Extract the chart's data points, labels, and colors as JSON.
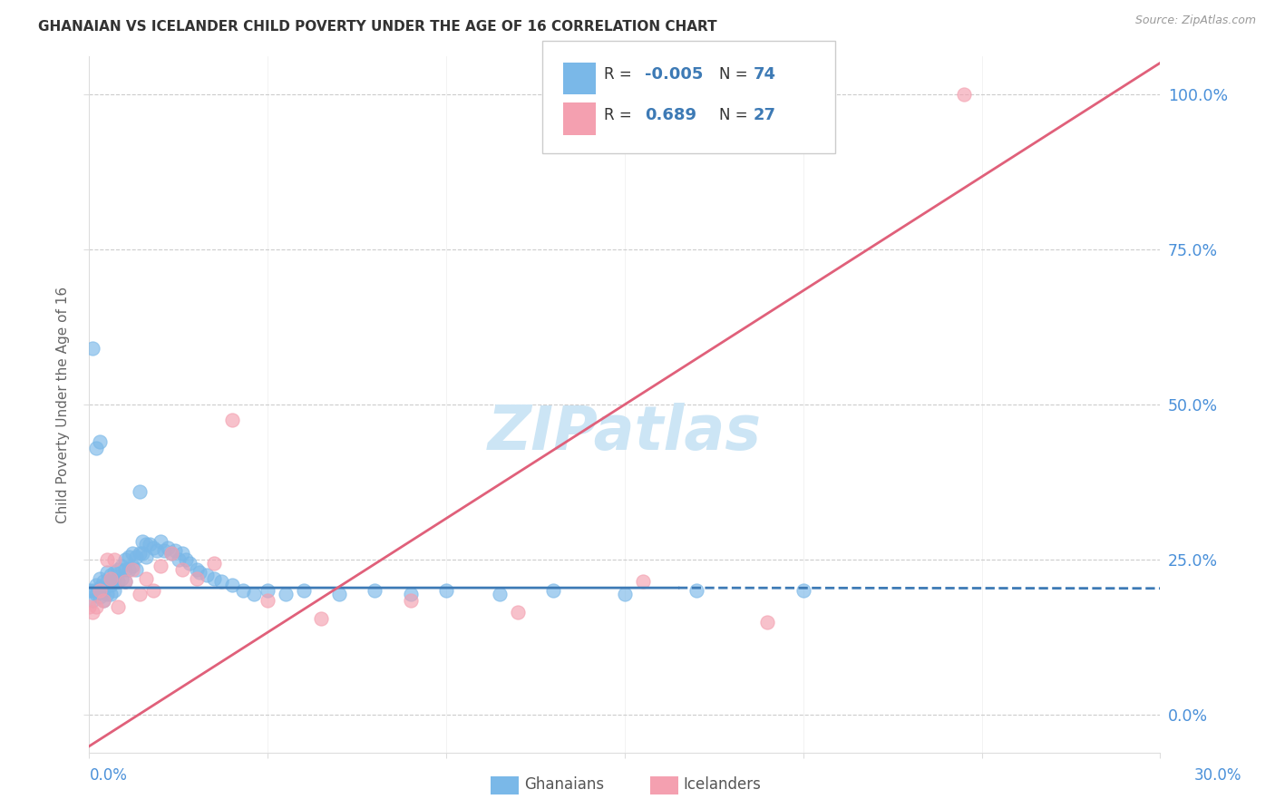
{
  "title": "GHANAIAN VS ICELANDER CHILD POVERTY UNDER THE AGE OF 16 CORRELATION CHART",
  "source": "Source: ZipAtlas.com",
  "ylabel": "Child Poverty Under the Age of 16",
  "ghanaian_color": "#7ab8e8",
  "icelander_color": "#f4a0b0",
  "ghanaian_line_color": "#3d7ab5",
  "icelander_line_color": "#e0607a",
  "watermark": "ZIPatlas",
  "xmin": 0.0,
  "xmax": 0.3,
  "ymin": -0.06,
  "ymax": 1.06,
  "ytick_vals": [
    0.0,
    0.25,
    0.5,
    0.75,
    1.0
  ],
  "ytick_labels": [
    "0.0%",
    "25.0%",
    "50.0%",
    "75.0%",
    "100.0%"
  ],
  "ghanaian_x": [
    0.0,
    0.001,
    0.001,
    0.002,
    0.002,
    0.003,
    0.003,
    0.003,
    0.004,
    0.004,
    0.004,
    0.005,
    0.005,
    0.005,
    0.006,
    0.006,
    0.006,
    0.007,
    0.007,
    0.007,
    0.008,
    0.008,
    0.009,
    0.009,
    0.01,
    0.01,
    0.01,
    0.011,
    0.011,
    0.012,
    0.012,
    0.013,
    0.013,
    0.014,
    0.015,
    0.015,
    0.016,
    0.016,
    0.017,
    0.018,
    0.019,
    0.02,
    0.021,
    0.022,
    0.023,
    0.024,
    0.025,
    0.026,
    0.027,
    0.028,
    0.03,
    0.031,
    0.033,
    0.035,
    0.037,
    0.04,
    0.043,
    0.046,
    0.05,
    0.055,
    0.06,
    0.07,
    0.08,
    0.09,
    0.1,
    0.115,
    0.13,
    0.15,
    0.17,
    0.2,
    0.001,
    0.002,
    0.003,
    0.014
  ],
  "ghanaian_y": [
    0.2,
    0.2,
    0.185,
    0.21,
    0.195,
    0.22,
    0.205,
    0.19,
    0.215,
    0.2,
    0.185,
    0.23,
    0.215,
    0.195,
    0.225,
    0.21,
    0.195,
    0.23,
    0.215,
    0.2,
    0.235,
    0.215,
    0.24,
    0.22,
    0.25,
    0.235,
    0.215,
    0.255,
    0.235,
    0.26,
    0.24,
    0.255,
    0.235,
    0.26,
    0.28,
    0.26,
    0.275,
    0.255,
    0.275,
    0.27,
    0.265,
    0.28,
    0.265,
    0.27,
    0.26,
    0.265,
    0.25,
    0.26,
    0.25,
    0.245,
    0.235,
    0.23,
    0.225,
    0.22,
    0.215,
    0.21,
    0.2,
    0.195,
    0.2,
    0.195,
    0.2,
    0.195,
    0.2,
    0.195,
    0.2,
    0.195,
    0.2,
    0.195,
    0.2,
    0.2,
    0.59,
    0.43,
    0.44,
    0.36
  ],
  "icelander_x": [
    0.0,
    0.001,
    0.002,
    0.003,
    0.004,
    0.005,
    0.006,
    0.007,
    0.008,
    0.01,
    0.012,
    0.014,
    0.016,
    0.018,
    0.02,
    0.023,
    0.026,
    0.03,
    0.035,
    0.04,
    0.05,
    0.065,
    0.09,
    0.12,
    0.155,
    0.19,
    0.245
  ],
  "icelander_y": [
    0.175,
    0.165,
    0.175,
    0.2,
    0.185,
    0.25,
    0.22,
    0.25,
    0.175,
    0.215,
    0.235,
    0.195,
    0.22,
    0.2,
    0.24,
    0.26,
    0.235,
    0.22,
    0.245,
    0.475,
    0.185,
    0.155,
    0.185,
    0.165,
    0.215,
    0.15,
    1.0
  ],
  "gh_trend_x": [
    0.0,
    0.3
  ],
  "gh_trend_y": [
    0.205,
    0.204
  ],
  "ic_trend_x": [
    0.0,
    0.3
  ],
  "ic_trend_y": [
    -0.05,
    1.05
  ]
}
